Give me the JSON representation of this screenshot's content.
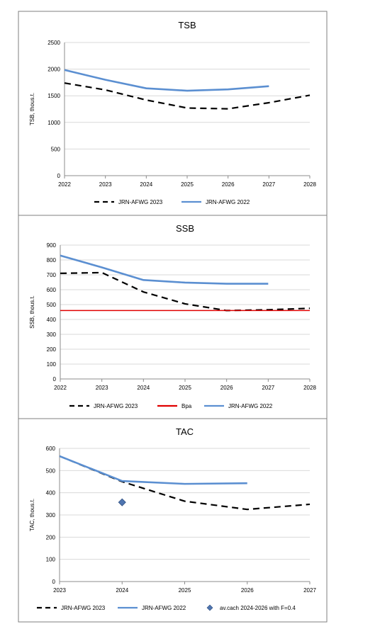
{
  "chart_data": [
    {
      "type": "line",
      "title": "TSB",
      "ylabel": "TSB, thous.t.",
      "xlabel": "",
      "ylim": [
        0,
        2500
      ],
      "xlim": [
        2022,
        2028
      ],
      "y_ticks": [
        0,
        500,
        1000,
        1500,
        2000,
        2500
      ],
      "x_ticks": [
        2022,
        2023,
        2024,
        2025,
        2026,
        2027,
        2028
      ],
      "grid": true,
      "legend": "bottom",
      "series": [
        {
          "name": "JRN-AFWG 2023",
          "style": "dashed",
          "color": "#000000",
          "x": [
            2022,
            2023,
            2024,
            2025,
            2026,
            2027,
            2028
          ],
          "y": [
            1740,
            1610,
            1420,
            1270,
            1255,
            1370,
            1510
          ]
        },
        {
          "name": "JRN-AFWG 2022",
          "style": "solid",
          "color": "#5b8fd1",
          "x": [
            2022,
            2023,
            2024,
            2025,
            2026,
            2027
          ],
          "y": [
            1985,
            1800,
            1640,
            1595,
            1620,
            1680
          ]
        }
      ]
    },
    {
      "type": "line",
      "title": "SSB",
      "ylabel": "SSB, thous.t.",
      "xlabel": "",
      "ylim": [
        0,
        900
      ],
      "xlim": [
        2022,
        2028
      ],
      "y_ticks": [
        0,
        100,
        200,
        300,
        400,
        500,
        600,
        700,
        800,
        900
      ],
      "x_ticks": [
        2022,
        2023,
        2024,
        2025,
        2026,
        2027,
        2028
      ],
      "grid": true,
      "legend": "bottom",
      "series": [
        {
          "name": "JRN-AFWG 2023",
          "style": "dashed",
          "color": "#000000",
          "x": [
            2022,
            2023,
            2024,
            2025,
            2026,
            2027,
            2028
          ],
          "y": [
            710,
            715,
            585,
            505,
            460,
            465,
            475
          ]
        },
        {
          "name": "Bpa",
          "style": "solid",
          "color": "#e00000",
          "x": [
            2022,
            2028
          ],
          "y": [
            460,
            460
          ]
        },
        {
          "name": "JRN-AFWG 2022",
          "style": "solid",
          "color": "#5b8fd1",
          "x": [
            2022,
            2023,
            2024,
            2025,
            2026,
            2027
          ],
          "y": [
            830,
            750,
            665,
            648,
            640,
            640
          ]
        }
      ]
    },
    {
      "type": "line",
      "title": "TAC",
      "ylabel": "TAC, thous.t.",
      "xlabel": "",
      "ylim": [
        0,
        600
      ],
      "xlim": [
        2023,
        2027
      ],
      "y_ticks": [
        0,
        100,
        200,
        300,
        400,
        500,
        600
      ],
      "x_ticks": [
        2023,
        2024,
        2025,
        2026,
        2027
      ],
      "grid": true,
      "legend": "bottom",
      "series": [
        {
          "name": "JRN-AFWG 2023",
          "style": "dashed",
          "color": "#000000",
          "x": [
            2023,
            2024,
            2025,
            2026,
            2027
          ],
          "y": [
            565,
            450,
            362,
            325,
            348
          ]
        },
        {
          "name": "JRN-AFWG 2022",
          "style": "solid",
          "color": "#5b8fd1",
          "x": [
            2023,
            2024,
            2025,
            2026
          ],
          "y": [
            565,
            453,
            440,
            443
          ]
        },
        {
          "name": "av.cach 2024-2026 with F=0.4",
          "style": "marker",
          "color": "#4f75b0",
          "x": [
            2024
          ],
          "y": [
            357
          ]
        }
      ]
    }
  ]
}
